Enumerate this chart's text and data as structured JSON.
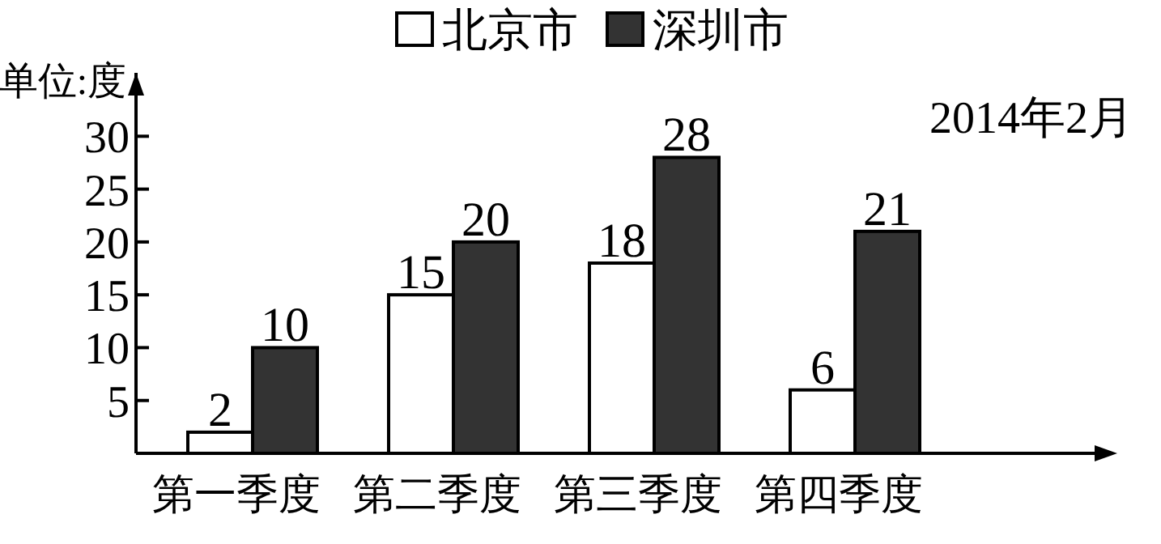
{
  "chart_data": {
    "type": "bar",
    "categories": [
      "第一季度",
      "第二季度",
      "第三季度",
      "第四季度"
    ],
    "series": [
      {
        "name": "北京市",
        "color": "#ffffff",
        "values": [
          2,
          15,
          18,
          6
        ]
      },
      {
        "name": "深圳市",
        "color": "#333333",
        "values": [
          10,
          20,
          28,
          21
        ]
      }
    ],
    "ylim": [
      0,
      36
    ],
    "yticks": [
      5,
      10,
      15,
      20,
      25,
      30
    ],
    "data_labels": true,
    "legend": "top",
    "annotations": [
      "单位:度",
      "2014年2月"
    ]
  }
}
